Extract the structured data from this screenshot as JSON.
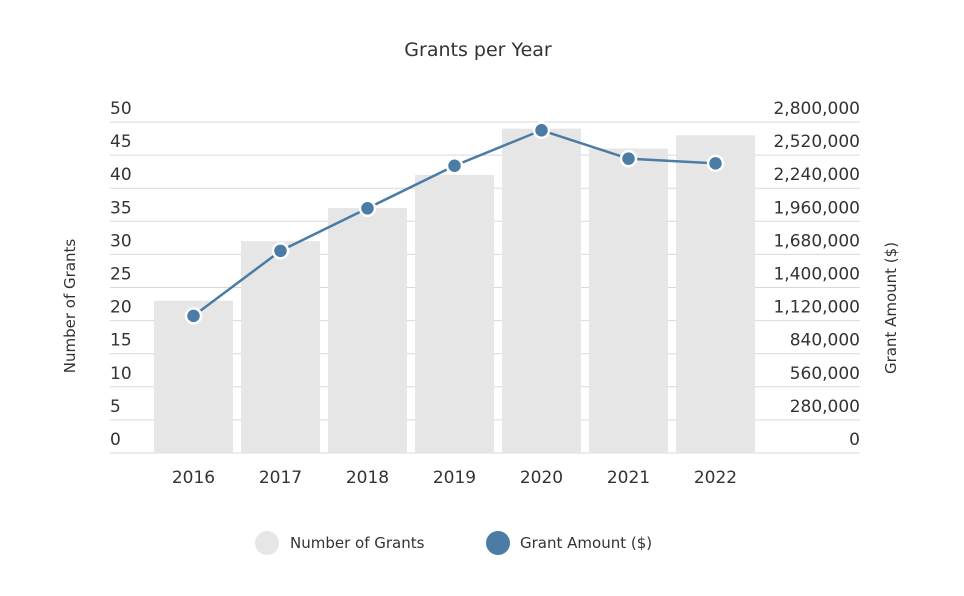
{
  "chart_data": {
    "type": "bar",
    "title": "Grants per Year",
    "categories": [
      "2016",
      "2017",
      "2018",
      "2019",
      "2020",
      "2021",
      "2022"
    ],
    "series": [
      {
        "name": "Number of Grants",
        "type": "bar",
        "axis": "left",
        "color": "#e6e6e6",
        "values": [
          23,
          32,
          37,
          42,
          49,
          46,
          48
        ]
      },
      {
        "name": "Grant Amount ($)",
        "type": "line",
        "axis": "right",
        "color": "#4a7ca5",
        "values": [
          1160000,
          1710000,
          2070000,
          2430000,
          2730000,
          2490000,
          2450000
        ]
      }
    ],
    "y_left": {
      "label": "Number of Grants",
      "ylim": [
        0,
        50
      ],
      "ticks": [
        "0",
        "5",
        "10",
        "15",
        "20",
        "25",
        "30",
        "35",
        "40",
        "45",
        "50"
      ]
    },
    "y_right": {
      "label": "Grant Amount ($)",
      "ylim": [
        0,
        2800000
      ],
      "ticks": [
        "0",
        "280,000",
        "560,000",
        "840,000",
        "1,120,000",
        "1,400,000",
        "1,680,000",
        "1,960,000",
        "2,240,000",
        "2,520,000",
        "2,800,000"
      ]
    },
    "grid": true,
    "legend": "bottom",
    "legend_entries": [
      "Number of Grants",
      "Grant Amount ($)"
    ]
  }
}
